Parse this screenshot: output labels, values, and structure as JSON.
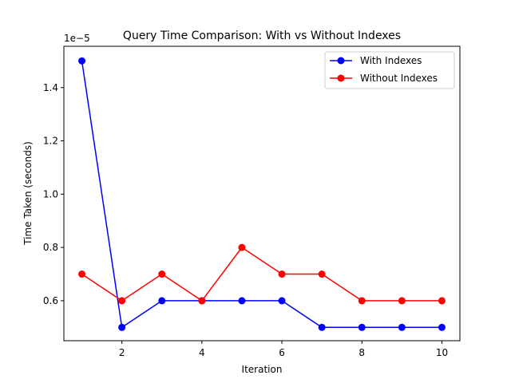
{
  "chart_data": {
    "type": "line",
    "title": "Query Time Comparison: With vs Without Indexes",
    "xlabel": "Iteration",
    "ylabel": "Time Taken (seconds)",
    "y_scale_label": "1e−5",
    "x": [
      1,
      2,
      3,
      4,
      5,
      6,
      7,
      8,
      9,
      10
    ],
    "xlim": [
      0.55,
      10.45
    ],
    "ylim": [
      0.45,
      1.555
    ],
    "xticks": [
      2,
      4,
      6,
      8,
      10
    ],
    "xtick_labels": [
      "2",
      "4",
      "6",
      "8",
      "10"
    ],
    "yticks": [
      0.6,
      0.8,
      1.0,
      1.2,
      1.4
    ],
    "ytick_labels": [
      "0.6",
      "0.8",
      "1.0",
      "1.2",
      "1.4"
    ],
    "grid": false,
    "legend_position": "top-right",
    "series": [
      {
        "name": "With Indexes",
        "color": "#0000ff",
        "marker": "circle",
        "values": [
          1.5,
          0.5,
          0.6,
          0.6,
          0.6,
          0.6,
          0.5,
          0.5,
          0.5,
          0.5
        ]
      },
      {
        "name": "Without Indexes",
        "color": "#ff0000",
        "marker": "circle",
        "values": [
          0.7,
          0.6,
          0.7,
          0.6,
          0.8,
          0.7,
          0.7,
          0.6,
          0.6,
          0.6
        ]
      }
    ]
  }
}
